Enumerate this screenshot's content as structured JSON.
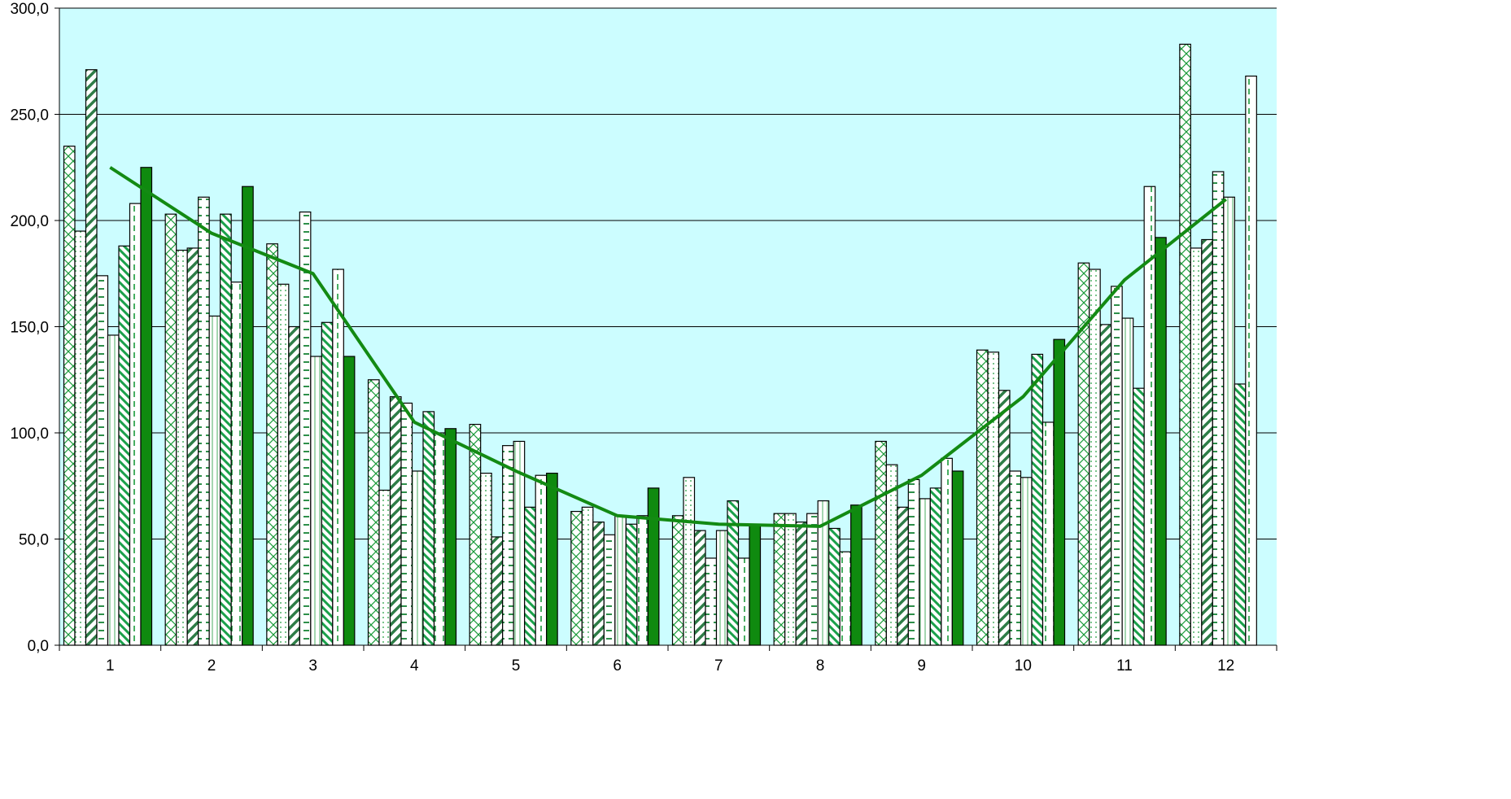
{
  "chart_data": {
    "type": "bar",
    "title": "",
    "xlabel": "",
    "ylabel": "",
    "categories": [
      "1",
      "2",
      "3",
      "4",
      "5",
      "6",
      "7",
      "8",
      "9",
      "10",
      "11",
      "12"
    ],
    "ylim": [
      0,
      300
    ],
    "yticks": [
      "0,0",
      "50,0",
      "100,0",
      "150,0",
      "200,0",
      "250,0",
      "300,0"
    ],
    "grid": true,
    "legend": "none",
    "colors": {
      "plot_background": "#ccfdff",
      "bar_green": "#0f8a0f",
      "pattern_green": "#1a9a3a",
      "outline": "#000000",
      "gridline": "#000000",
      "trend_line": "#138a13"
    },
    "series": [
      {
        "pattern": "crosshatch",
        "values": [
          235,
          203,
          189,
          125,
          104,
          63,
          61,
          62,
          96,
          139,
          180,
          283
        ]
      },
      {
        "pattern": "dots",
        "values": [
          195,
          186,
          170,
          73,
          81,
          65,
          79,
          62,
          85,
          138,
          177,
          187
        ]
      },
      {
        "pattern": "wide-diagonal",
        "values": [
          271,
          187,
          150,
          117,
          51,
          58,
          54,
          58,
          65,
          120,
          151,
          191
        ]
      },
      {
        "pattern": "horizontal-dash",
        "values": [
          174,
          211,
          204,
          114,
          94,
          52,
          41,
          62,
          78,
          82,
          169,
          223
        ]
      },
      {
        "pattern": "vertical-line",
        "values": [
          146,
          155,
          136,
          82,
          96,
          61,
          54,
          68,
          69,
          79,
          154,
          211
        ]
      },
      {
        "pattern": "diagonal-stripe",
        "values": [
          188,
          203,
          152,
          110,
          65,
          57,
          68,
          55,
          74,
          137,
          121,
          123
        ]
      },
      {
        "pattern": "dashed-vertical",
        "values": [
          208,
          171,
          177,
          100,
          80,
          61,
          41,
          44,
          88,
          105,
          216,
          268
        ]
      },
      {
        "pattern": "solid",
        "values": [
          225,
          216,
          136,
          102,
          81,
          74,
          57,
          66,
          82,
          144,
          192,
          null
        ]
      }
    ],
    "trend_line": [
      225,
      194,
      175,
      105,
      82,
      61,
      57,
      56,
      80,
      117,
      172,
      210
    ]
  }
}
